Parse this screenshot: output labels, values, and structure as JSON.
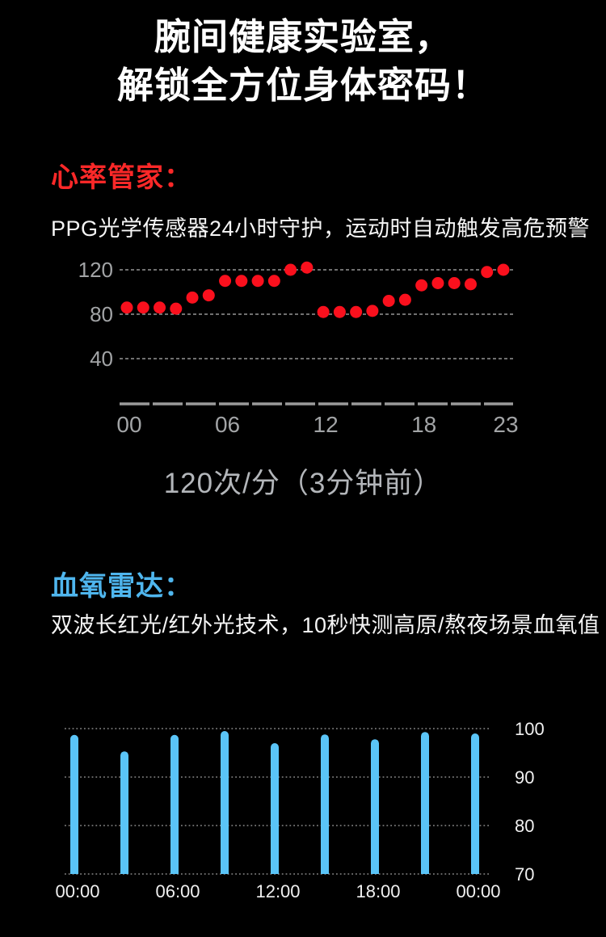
{
  "page_bg": "#000000",
  "title": {
    "line1": "腕间健康实验室，",
    "line2": "解锁全方位身体密码！"
  },
  "heart_section": {
    "heading": "心率管家：",
    "heading_color": "#fb2828",
    "description": "PPG光学传感器24小时守护，运动时自动触发高危预警",
    "caption": "120次/分（3分钟前）"
  },
  "spo2_section": {
    "heading": "血氧雷达：",
    "heading_color": "#4fb6ee",
    "description": "双波长红光/红外光技术，10秒快测高原/熬夜场景血氧值"
  },
  "chart_data": [
    {
      "name": "heart-rate-24h",
      "type": "scatter",
      "x_hours": [
        0,
        1,
        2,
        3,
        4,
        5,
        6,
        7,
        8,
        9,
        10,
        11,
        12,
        13,
        14,
        15,
        16,
        17,
        18,
        19,
        20,
        21,
        22,
        23
      ],
      "values": [
        86,
        86,
        86,
        85,
        95,
        97,
        110,
        110,
        110,
        110,
        120,
        122,
        82,
        82,
        82,
        83,
        92,
        93,
        106,
        108,
        108,
        107,
        118,
        120
      ],
      "y_ticks": [
        120,
        80,
        40
      ],
      "x_tick_hours": [
        0,
        6,
        12,
        18,
        23
      ],
      "x_tick_labels": [
        "00",
        "06",
        "12",
        "18",
        "23"
      ],
      "ylim": [
        0,
        140
      ],
      "grid": "dashed",
      "point_color": "#fa101d",
      "axis_color": "#9a9a9a",
      "tick_label_color": "#a2a4a6"
    },
    {
      "name": "spo2-24h",
      "type": "bar",
      "hours": [
        0,
        3,
        6,
        9,
        12,
        15,
        18,
        21,
        24
      ],
      "values": [
        98.7,
        95.3,
        98.7,
        99.5,
        97.0,
        98.8,
        97.8,
        99.3,
        99.0
      ],
      "y_ticks": [
        100,
        90,
        80,
        70
      ],
      "x_tick_hours": [
        0,
        6,
        12,
        18,
        24
      ],
      "x_tick_labels": [
        "00:00",
        "06:00",
        "12:00",
        "18:00",
        "00:00"
      ],
      "ylim": [
        70,
        101.5
      ],
      "grid": "dotted",
      "legend_position": "right-axis",
      "bar_color": "#5ac4f7",
      "grid_color": "#a5a5a5",
      "tick_label_color": "#f0f0f0"
    }
  ]
}
